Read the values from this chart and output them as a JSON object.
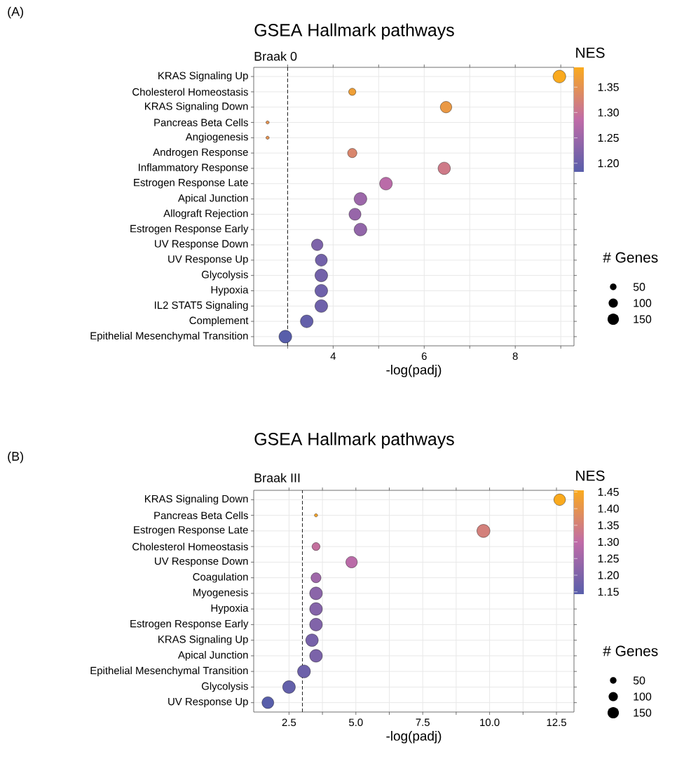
{
  "chart_data": [
    {
      "type": "bubble",
      "orientation": "horizontal",
      "title": "GSEA Hallmark pathways",
      "subtitle": "Braak 0",
      "xlabel": "-log(padj)",
      "clabel": "NES",
      "legend_title": "# Genes",
      "annotations": [
        "(A)"
      ],
      "categories": [
        "KRAS Signaling Up",
        "Cholesterol Homeostasis",
        "KRAS Signaling Down",
        "Pancreas Beta Cells",
        "Angiogenesis",
        "Androgen Response",
        "Inflammatory Response",
        "Estrogen Response Late",
        "Apical Junction",
        "Allograft Rejection",
        "Estrogen Response Early",
        "UV Response Down",
        "UV Response Up",
        "Glycolysis",
        "Hypoxia",
        "IL2 STAT5 Signaling",
        "Complement",
        "Epithelial Mesenchymal Transition"
      ],
      "values": [
        8.97,
        4.42,
        6.48,
        2.56,
        2.56,
        4.42,
        6.44,
        5.16,
        4.6,
        4.48,
        4.6,
        3.65,
        3.74,
        3.74,
        3.74,
        3.74,
        3.42,
        2.95
      ],
      "sizes": [
        188,
        61,
        153,
        12,
        12,
        100,
        178,
        188,
        188,
        167,
        188,
        153,
        167,
        188,
        188,
        188,
        188,
        190
      ],
      "cvalues": [
        1.389,
        1.37,
        1.36,
        1.35,
        1.35,
        1.33,
        1.31,
        1.28,
        1.25,
        1.245,
        1.24,
        1.22,
        1.21,
        1.21,
        1.205,
        1.205,
        1.195,
        1.183
      ],
      "size_legend": [
        50,
        100,
        150
      ],
      "clim": [
        1.183,
        1.389
      ],
      "cticks": [
        {
          "value": 1.2,
          "label": "1.20"
        },
        1.25,
        {
          "value": 1.3,
          "label": "1.30"
        },
        1.35
      ],
      "xlim": [
        2.255,
        9.29
      ],
      "xticks": [
        {
          "value": 3,
          "label": null
        },
        4,
        {
          "value": 5,
          "label": null
        },
        6,
        {
          "value": 7,
          "label": null
        },
        8,
        {
          "value": 9,
          "label": null
        }
      ],
      "ref_lines": [
        {
          "axis": "x",
          "value": 3,
          "line_style": "dashed"
        }
      ],
      "grid": true
    },
    {
      "type": "bubble",
      "orientation": "horizontal",
      "title": "GSEA Hallmark pathways",
      "subtitle": "Braak III",
      "xlabel": "-log(padj)",
      "clabel": "NES",
      "legend_title": "# Genes",
      "annotations": [
        "(B)"
      ],
      "categories": [
        "KRAS Signaling Down",
        "Pancreas Beta Cells",
        "Estrogen Response Late",
        "Cholesterol Homeostasis",
        "UV Response Down",
        "Coagulation",
        "Myogenesis",
        "Hypoxia",
        "Estrogen Response Early",
        "KRAS Signaling Up",
        "Apical Junction",
        "Epithelial Mesenchymal Transition",
        "Glycolysis",
        "UV Response Up"
      ],
      "values": [
        12.62,
        3.51,
        9.77,
        3.51,
        4.84,
        3.51,
        3.51,
        3.51,
        3.51,
        3.36,
        3.51,
        3.06,
        2.5,
        1.71
      ],
      "sizes": [
        157,
        12,
        199,
        74,
        153,
        116,
        188,
        188,
        188,
        183,
        188,
        194,
        188,
        163
      ],
      "cvalues": [
        1.455,
        1.44,
        1.35,
        1.31,
        1.29,
        1.25,
        1.22,
        1.21,
        1.205,
        1.19,
        1.195,
        1.175,
        1.16,
        1.143
      ],
      "size_legend": [
        50,
        100,
        150
      ],
      "clim": [
        1.143,
        1.455
      ],
      "cticks": [
        1.15,
        {
          "value": 1.2,
          "label": "1.20"
        },
        1.25,
        {
          "value": 1.3,
          "label": "1.30"
        },
        1.35,
        {
          "value": 1.4,
          "label": "1.40"
        },
        1.45
      ],
      "xlim": [
        1.18,
        13.155
      ],
      "xticks": [
        2.5,
        {
          "value": 3.75,
          "label": null
        },
        {
          "value": 5,
          "label": "5.0"
        },
        {
          "value": 6.25,
          "label": null
        },
        7.5,
        {
          "value": 8.75,
          "label": null
        },
        {
          "value": 10,
          "label": "10.0"
        },
        {
          "value": 11.25,
          "label": null
        },
        12.5
      ],
      "ref_lines": [
        {
          "axis": "x",
          "value": 3,
          "line_style": "dashed"
        }
      ],
      "grid": true
    }
  ]
}
